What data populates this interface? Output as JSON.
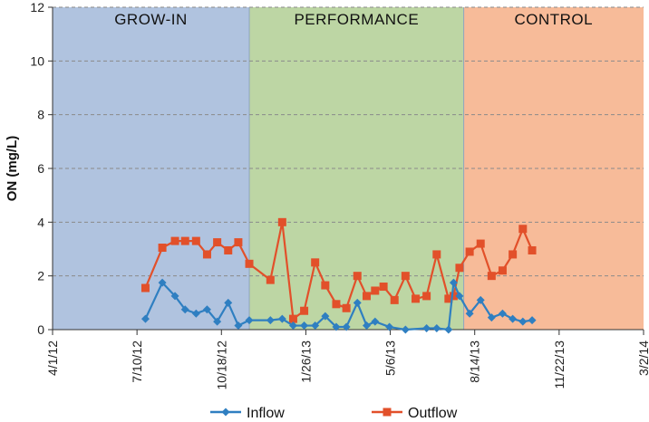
{
  "chart_data": {
    "type": "line",
    "title": "",
    "xlabel": "",
    "ylabel": "ON (mg/L)",
    "ylim": [
      0,
      12
    ],
    "yticks": [
      "0",
      "2",
      "4",
      "6",
      "8",
      "10",
      "12"
    ],
    "xlim": [
      0,
      700
    ],
    "xticks": [
      {
        "label": "4/1/12",
        "day": 0
      },
      {
        "label": "7/10/12",
        "day": 100
      },
      {
        "label": "10/18/12",
        "day": 200
      },
      {
        "label": "1/26/13",
        "day": 300
      },
      {
        "label": "5/6/13",
        "day": 400
      },
      {
        "label": "8/14/13",
        "day": 500
      },
      {
        "label": "11/22/13",
        "day": 600
      },
      {
        "label": "3/2/14",
        "day": 700
      }
    ],
    "grid": true,
    "phases": [
      {
        "name": "GROW-IN",
        "start": 0,
        "end": 233,
        "color": "#b0c3df"
      },
      {
        "name": "PERFORMANCE",
        "start": 233,
        "end": 487,
        "color": "#bdd6a4"
      },
      {
        "name": "CONTROL",
        "start": 487,
        "end": 700,
        "color": "#f7bb99"
      }
    ],
    "series": [
      {
        "name": "Inflow",
        "color": "#2f7fc1",
        "marker": "diamond",
        "x": [
          110,
          130,
          145,
          157,
          170,
          183,
          195,
          208,
          220,
          233,
          258,
          272,
          285,
          298,
          311,
          323,
          336,
          348,
          361,
          372,
          382,
          399,
          418,
          443,
          455,
          469,
          475,
          482,
          494,
          507,
          520,
          533,
          545,
          557,
          568
        ],
        "y": [
          0.4,
          1.75,
          1.25,
          0.75,
          0.6,
          0.75,
          0.3,
          1.0,
          0.15,
          0.35,
          0.35,
          0.4,
          0.15,
          0.15,
          0.15,
          0.5,
          0.1,
          0.1,
          1.0,
          0.15,
          0.3,
          0.1,
          0.0,
          0.05,
          0.05,
          0.0,
          1.75,
          1.25,
          0.6,
          1.1,
          0.45,
          0.6,
          0.4,
          0.3,
          0.35
        ]
      },
      {
        "name": "Outflow",
        "color": "#e2502a",
        "marker": "square",
        "x": [
          110,
          130,
          145,
          157,
          170,
          183,
          195,
          208,
          220,
          233,
          258,
          272,
          285,
          298,
          311,
          323,
          336,
          348,
          361,
          372,
          382,
          392,
          405,
          418,
          430,
          443,
          455,
          469,
          475,
          482,
          494,
          507,
          520,
          533,
          545,
          557,
          568
        ],
        "y": [
          1.55,
          3.05,
          3.3,
          3.3,
          3.3,
          2.8,
          3.25,
          2.95,
          3.25,
          2.45,
          1.85,
          4.0,
          0.4,
          0.7,
          2.5,
          1.65,
          0.95,
          0.8,
          2.0,
          1.25,
          1.45,
          1.6,
          1.1,
          2.0,
          1.15,
          1.25,
          2.8,
          1.15,
          1.25,
          2.3,
          2.9,
          3.2,
          2.0,
          2.2,
          2.8,
          3.75,
          2.95
        ]
      }
    ]
  }
}
